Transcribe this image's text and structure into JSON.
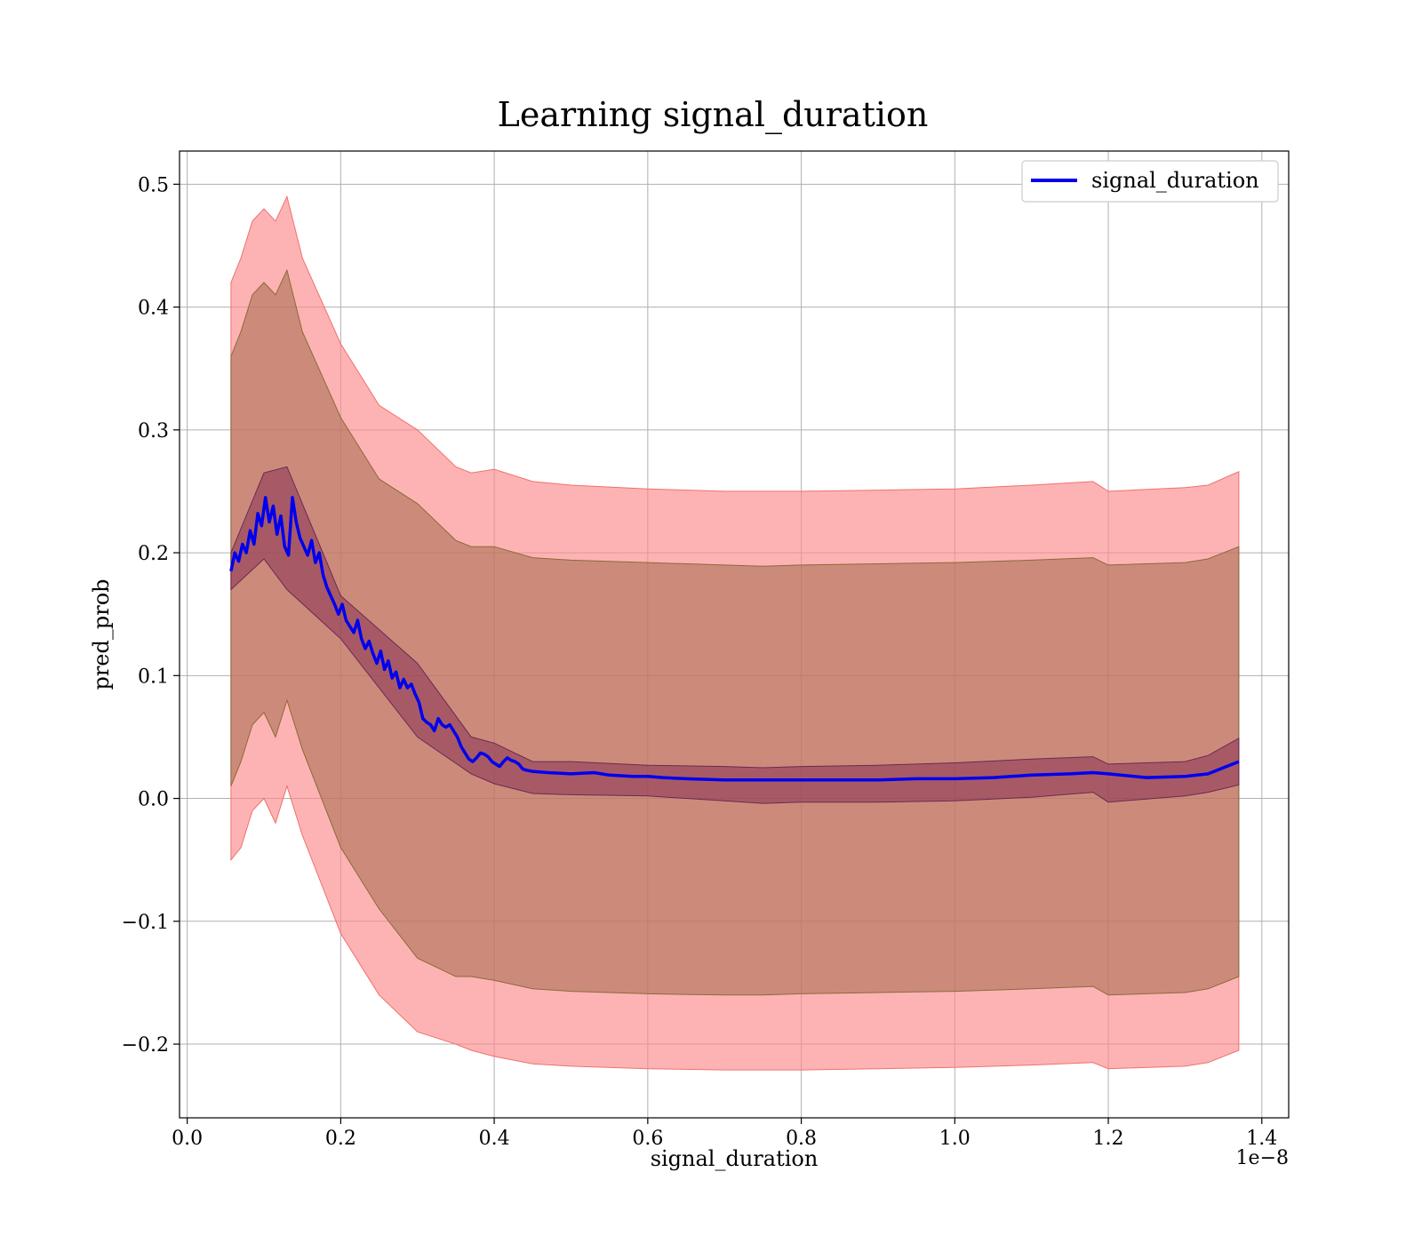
{
  "chart_data": {
    "type": "line",
    "title": "Learning signal_duration",
    "xlabel": "signal_duration",
    "ylabel": "pred_prob",
    "x_offset_label": "1e−8",
    "xlim": [
      -0.01,
      1.435
    ],
    "ylim": [
      -0.26,
      0.527
    ],
    "xticks": [
      0.0,
      0.2,
      0.4,
      0.6,
      0.8,
      1.0,
      1.2,
      1.4
    ],
    "xtick_labels": [
      "0.0",
      "0.2",
      "0.4",
      "0.6",
      "0.8",
      "1.0",
      "1.2",
      "1.4"
    ],
    "yticks": [
      -0.2,
      -0.1,
      0.0,
      0.1,
      0.2,
      0.3,
      0.4,
      0.5
    ],
    "ytick_labels": [
      "−0.2",
      "−0.1",
      "0.0",
      "0.1",
      "0.2",
      "0.3",
      "0.4",
      "0.5"
    ],
    "grid": true,
    "legend_position": "top-right",
    "colors": {
      "line": "#0000ee",
      "outer_band": "#fc8b8b",
      "inner_band": "#7a1e4e",
      "grid": "#b0b0b0"
    },
    "series": [
      {
        "name": "signal_duration",
        "x": [
          0.057,
          0.062,
          0.067,
          0.072,
          0.077,
          0.082,
          0.087,
          0.092,
          0.097,
          0.102,
          0.107,
          0.112,
          0.117,
          0.122,
          0.127,
          0.132,
          0.137,
          0.142,
          0.147,
          0.152,
          0.157,
          0.162,
          0.167,
          0.172,
          0.177,
          0.182,
          0.187,
          0.192,
          0.197,
          0.202,
          0.207,
          0.212,
          0.217,
          0.222,
          0.227,
          0.232,
          0.237,
          0.242,
          0.247,
          0.252,
          0.257,
          0.262,
          0.267,
          0.272,
          0.277,
          0.282,
          0.287,
          0.292,
          0.297,
          0.302,
          0.307,
          0.312,
          0.317,
          0.322,
          0.327,
          0.332,
          0.337,
          0.342,
          0.347,
          0.352,
          0.357,
          0.362,
          0.367,
          0.372,
          0.377,
          0.382,
          0.387,
          0.392,
          0.397,
          0.402,
          0.407,
          0.412,
          0.417,
          0.422,
          0.427,
          0.432,
          0.437,
          0.442,
          0.45,
          0.47,
          0.5,
          0.53,
          0.55,
          0.58,
          0.6,
          0.62,
          0.65,
          0.7,
          0.75,
          0.8,
          0.85,
          0.9,
          0.95,
          1.0,
          1.05,
          1.1,
          1.15,
          1.18,
          1.2,
          1.25,
          1.3,
          1.33,
          1.37
        ],
        "y": [
          0.185,
          0.2,
          0.193,
          0.207,
          0.2,
          0.218,
          0.207,
          0.232,
          0.222,
          0.245,
          0.225,
          0.238,
          0.215,
          0.23,
          0.205,
          0.198,
          0.245,
          0.225,
          0.212,
          0.205,
          0.198,
          0.21,
          0.192,
          0.2,
          0.182,
          0.172,
          0.165,
          0.158,
          0.15,
          0.158,
          0.145,
          0.14,
          0.135,
          0.145,
          0.13,
          0.122,
          0.128,
          0.118,
          0.11,
          0.12,
          0.105,
          0.112,
          0.098,
          0.103,
          0.09,
          0.097,
          0.09,
          0.093,
          0.085,
          0.078,
          0.065,
          0.062,
          0.06,
          0.055,
          0.065,
          0.06,
          0.058,
          0.06,
          0.055,
          0.05,
          0.042,
          0.037,
          0.032,
          0.03,
          0.033,
          0.037,
          0.036,
          0.034,
          0.03,
          0.028,
          0.026,
          0.03,
          0.033,
          0.031,
          0.03,
          0.028,
          0.024,
          0.023,
          0.022,
          0.021,
          0.02,
          0.021,
          0.019,
          0.018,
          0.018,
          0.017,
          0.016,
          0.015,
          0.015,
          0.015,
          0.015,
          0.015,
          0.016,
          0.016,
          0.017,
          0.019,
          0.02,
          0.021,
          0.02,
          0.017,
          0.018,
          0.02,
          0.03
        ]
      }
    ],
    "inner_band": {
      "x": [
        0.057,
        0.1,
        0.13,
        0.2,
        0.3,
        0.37,
        0.4,
        0.45,
        0.5,
        0.6,
        0.7,
        0.75,
        0.8,
        0.9,
        1.0,
        1.1,
        1.18,
        1.2,
        1.3,
        1.33,
        1.37
      ],
      "upper": [
        0.2,
        0.265,
        0.27,
        0.165,
        0.11,
        0.05,
        0.045,
        0.03,
        0.03,
        0.027,
        0.026,
        0.025,
        0.026,
        0.027,
        0.029,
        0.032,
        0.034,
        0.028,
        0.03,
        0.035,
        0.049
      ],
      "lower": [
        0.17,
        0.195,
        0.17,
        0.13,
        0.05,
        0.02,
        0.012,
        0.004,
        0.003,
        0.002,
        -0.002,
        -0.004,
        -0.003,
        -0.003,
        -0.002,
        0.001,
        0.005,
        -0.003,
        0.002,
        0.005,
        0.011
      ]
    },
    "outer_band_hi": {
      "x": [
        0.057,
        0.07,
        0.085,
        0.1,
        0.115,
        0.13,
        0.15,
        0.2,
        0.25,
        0.3,
        0.35,
        0.37,
        0.4,
        0.45,
        0.5,
        0.6,
        0.7,
        0.75,
        0.8,
        0.9,
        1.0,
        1.1,
        1.18,
        1.2,
        1.3,
        1.33,
        1.37
      ],
      "upper": [
        0.42,
        0.44,
        0.47,
        0.48,
        0.47,
        0.49,
        0.44,
        0.37,
        0.32,
        0.3,
        0.27,
        0.265,
        0.268,
        0.258,
        0.255,
        0.252,
        0.25,
        0.25,
        0.25,
        0.251,
        0.252,
        0.255,
        0.258,
        0.25,
        0.253,
        0.255,
        0.266
      ],
      "lower": [
        0.36,
        0.38,
        0.41,
        0.42,
        0.41,
        0.43,
        0.38,
        0.31,
        0.26,
        0.24,
        0.21,
        0.205,
        0.205,
        0.196,
        0.194,
        0.192,
        0.19,
        0.189,
        0.19,
        0.191,
        0.192,
        0.194,
        0.196,
        0.19,
        0.192,
        0.195,
        0.205
      ]
    },
    "outer_band_lo": {
      "x": [
        0.057,
        0.07,
        0.085,
        0.1,
        0.115,
        0.13,
        0.15,
        0.2,
        0.25,
        0.3,
        0.35,
        0.37,
        0.4,
        0.45,
        0.5,
        0.6,
        0.7,
        0.75,
        0.8,
        0.9,
        1.0,
        1.1,
        1.18,
        1.2,
        1.3,
        1.33,
        1.37
      ],
      "upper": [
        0.01,
        0.03,
        0.06,
        0.07,
        0.05,
        0.08,
        0.04,
        -0.04,
        -0.09,
        -0.13,
        -0.145,
        -0.145,
        -0.148,
        -0.155,
        -0.157,
        -0.159,
        -0.16,
        -0.16,
        -0.159,
        -0.158,
        -0.157,
        -0.155,
        -0.153,
        -0.16,
        -0.158,
        -0.155,
        -0.145
      ],
      "lower": [
        -0.05,
        -0.04,
        -0.01,
        0.0,
        -0.02,
        0.01,
        -0.03,
        -0.11,
        -0.16,
        -0.19,
        -0.2,
        -0.205,
        -0.21,
        -0.216,
        -0.218,
        -0.22,
        -0.221,
        -0.221,
        -0.221,
        -0.22,
        -0.219,
        -0.217,
        -0.215,
        -0.22,
        -0.218,
        -0.215,
        -0.205
      ]
    }
  }
}
